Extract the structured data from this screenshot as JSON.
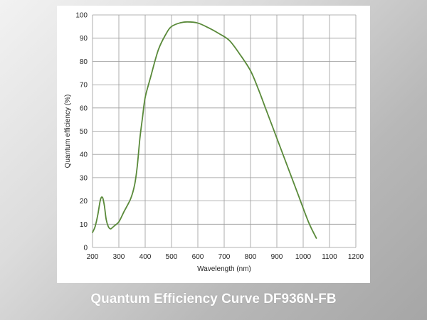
{
  "caption": "Quantum Efficiency Curve DF936N-FB",
  "chart_data": {
    "type": "line",
    "title": "",
    "xlabel": "Wavelength (nm)",
    "ylabel": "Quantum efficiency (%)",
    "xlim": [
      200,
      1200
    ],
    "ylim": [
      0,
      100
    ],
    "xticks": [
      200,
      300,
      400,
      500,
      600,
      700,
      800,
      900,
      1000,
      1100,
      1200
    ],
    "yticks": [
      0,
      10,
      20,
      30,
      40,
      50,
      60,
      70,
      80,
      90,
      100
    ],
    "grid": true,
    "line_color": "#5a8a3a",
    "series": [
      {
        "x": [
          200,
          210,
          220,
          230,
          238,
          245,
          252,
          260,
          268,
          275,
          285,
          300,
          320,
          345,
          360,
          370,
          380,
          390,
          400,
          420,
          450,
          480,
          500,
          530,
          560,
          600,
          640,
          680,
          720,
          760,
          800,
          830,
          860,
          900,
          940,
          980,
          1020,
          1050
        ],
        "y": [
          6.5,
          9,
          14,
          20.5,
          21.5,
          18,
          12,
          9,
          8,
          8.5,
          9.5,
          11,
          15.5,
          21,
          27,
          35,
          47,
          56,
          64.5,
          73,
          85,
          92,
          95,
          96.5,
          97,
          96.5,
          94.5,
          92,
          89,
          83,
          76,
          68,
          59,
          47,
          35,
          23,
          11,
          4
        ]
      }
    ]
  }
}
